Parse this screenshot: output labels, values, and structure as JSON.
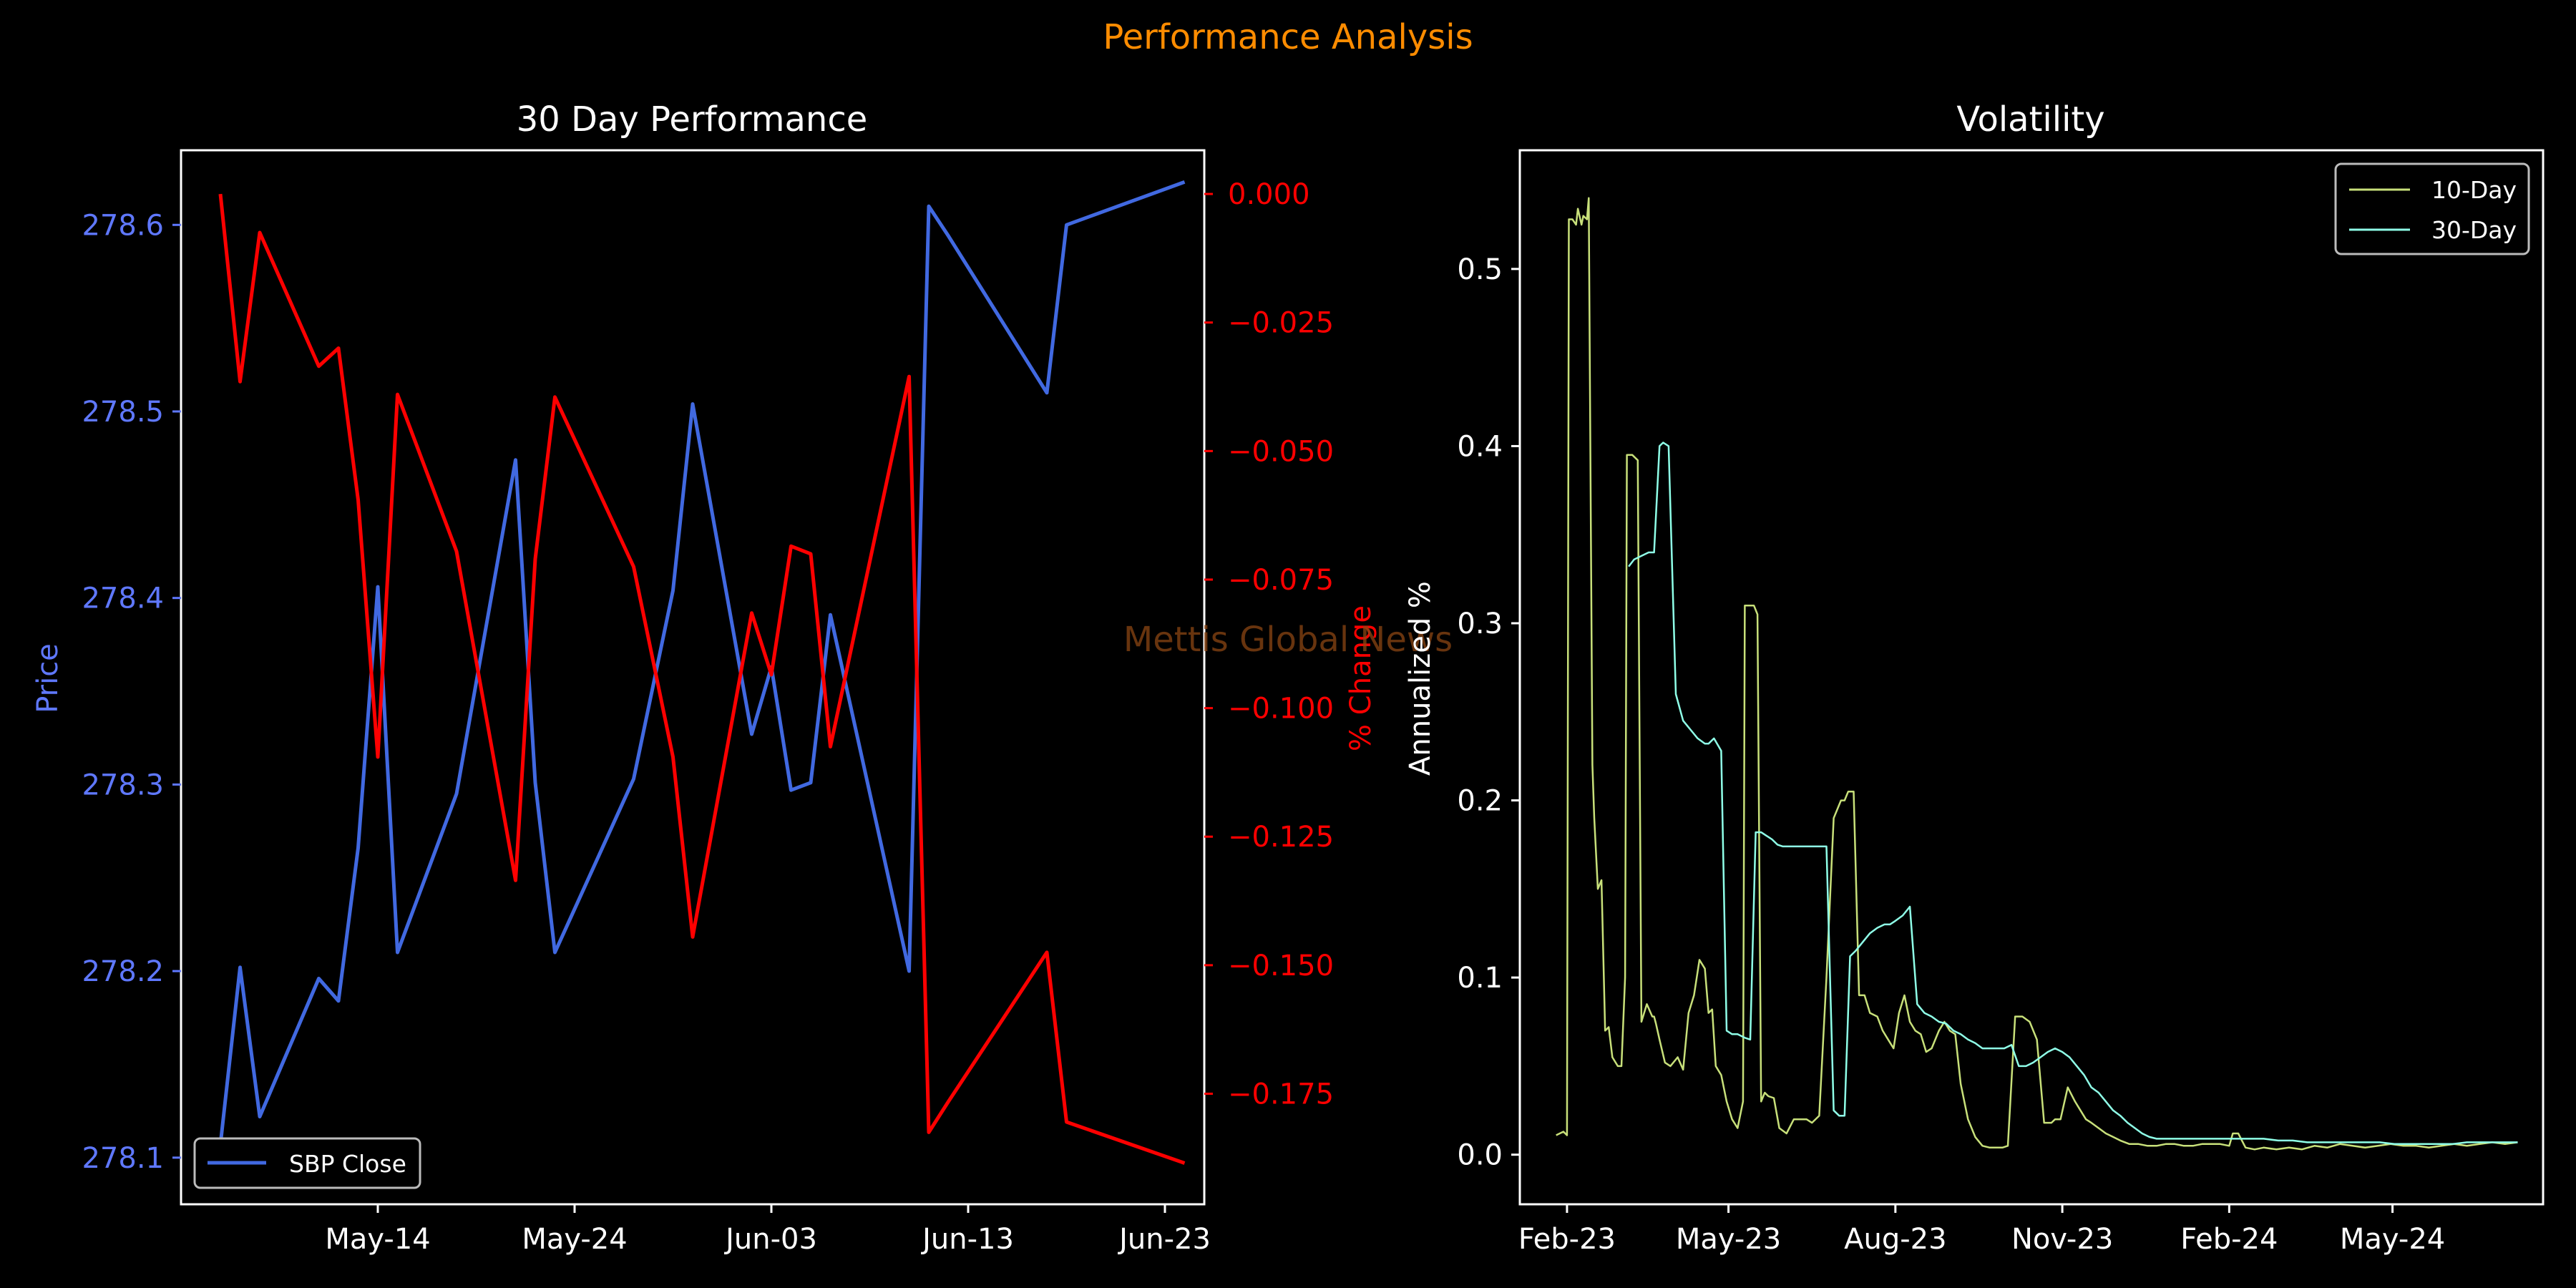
{
  "suptitle": "Performance Analysis",
  "watermark": "Mettis Global News",
  "colors": {
    "background": "#000000",
    "suptitle": "#ff8c00",
    "watermark": "#8b4513",
    "price": "#4169e1",
    "price_ticks": "#5f78ff",
    "pct_change": "#ff0000",
    "vol10": "#c8e07a",
    "vol30": "#8fffe8",
    "axis": "#ffffff"
  },
  "chart_data": [
    {
      "type": "line",
      "title": "30 Day Performance",
      "ylabel": "Price",
      "y2label": "% Change",
      "x_tick_labels": [
        "May-14",
        "May-24",
        "Jun-03",
        "Jun-13",
        "Jun-23"
      ],
      "x_ticks": [
        "2024-05-14",
        "2024-05-24",
        "2024-06-03",
        "2024-06-13",
        "2024-06-23"
      ],
      "xlim": [
        "2024-05-04",
        "2024-06-25"
      ],
      "ylim": [
        278.075,
        278.64
      ],
      "y2lim": [
        -0.1965,
        0.0085
      ],
      "y_ticks": [
        278.1,
        278.2,
        278.3,
        278.4,
        278.5,
        278.6
      ],
      "y2_ticks": [
        0.0,
        -0.025,
        -0.05,
        -0.075,
        -0.1,
        -0.125,
        -0.15,
        -0.175
      ],
      "legend": {
        "position": "lower left",
        "entries": [
          "SBP Close"
        ]
      },
      "x": [
        "2024-05-06",
        "2024-05-07",
        "2024-05-08",
        "2024-05-11",
        "2024-05-12",
        "2024-05-13",
        "2024-05-14",
        "2024-05-15",
        "2024-05-18",
        "2024-05-21",
        "2024-05-22",
        "2024-05-23",
        "2024-05-27",
        "2024-05-29",
        "2024-05-30",
        "2024-06-02",
        "2024-06-03",
        "2024-06-04",
        "2024-06-05",
        "2024-06-06",
        "2024-06-10",
        "2024-06-11",
        "2024-06-12",
        "2024-06-17",
        "2024-06-18",
        "2024-06-24"
      ],
      "series": [
        {
          "name": "SBP Close",
          "axis": "left",
          "values": [
            278.107,
            278.202,
            278.122,
            278.196,
            278.184,
            278.266,
            278.406,
            278.21,
            278.295,
            278.474,
            278.301,
            278.21,
            278.303,
            278.404,
            278.504,
            278.327,
            278.363,
            278.297,
            278.301,
            278.391,
            278.2,
            278.61,
            278.594,
            278.51,
            278.6,
            278.623
          ]
        },
        {
          "name": "% Change",
          "axis": "right",
          "values": [
            0.0,
            -0.0365,
            -0.0075,
            -0.0335,
            -0.03,
            -0.0595,
            -0.1095,
            -0.039,
            -0.0695,
            -0.1335,
            -0.071,
            -0.0395,
            -0.0725,
            -0.1095,
            -0.1445,
            -0.0815,
            -0.0935,
            -0.0685,
            -0.07,
            -0.1075,
            -0.0355,
            -0.1825,
            -0.1765,
            -0.1475,
            -0.1805,
            -0.1885
          ]
        }
      ]
    },
    {
      "type": "line",
      "title": "Volatility",
      "ylabel": "Annualized %",
      "x_tick_labels": [
        "Feb-23",
        "May-23",
        "Aug-23",
        "Nov-23",
        "Feb-24",
        "May-24"
      ],
      "x_ticks": [
        "2023-02-01",
        "2023-05-01",
        "2023-08-01",
        "2023-11-01",
        "2024-02-01",
        "2024-05-01"
      ],
      "xlim": [
        "2023-01-06",
        "2024-07-23"
      ],
      "ylim": [
        -0.028,
        0.567
      ],
      "y_ticks": [
        0.0,
        0.1,
        0.2,
        0.3,
        0.4,
        0.5
      ],
      "legend": {
        "position": "upper right",
        "entries": [
          "10-Day",
          "30-Day"
        ]
      },
      "series": [
        {
          "name": "10-Day",
          "x": [
            "2023-01-26",
            "2023-01-28",
            "2023-01-30",
            "2023-02-01",
            "2023-02-02",
            "2023-02-04",
            "2023-02-06",
            "2023-02-07",
            "2023-02-09",
            "2023-02-10",
            "2023-02-12",
            "2023-02-13",
            "2023-02-15",
            "2023-02-16",
            "2023-02-18",
            "2023-02-20",
            "2023-02-22",
            "2023-02-24",
            "2023-02-26",
            "2023-03-01",
            "2023-03-03",
            "2023-03-05",
            "2023-03-06",
            "2023-03-09",
            "2023-03-12",
            "2023-03-14",
            "2023-03-17",
            "2023-03-20",
            "2023-03-21",
            "2023-03-22",
            "2023-03-24",
            "2023-03-27",
            "2023-03-30",
            "2023-04-03",
            "2023-04-06",
            "2023-04-09",
            "2023-04-12",
            "2023-04-15",
            "2023-04-18",
            "2023-04-20",
            "2023-04-22",
            "2023-04-24",
            "2023-04-27",
            "2023-04-30",
            "2023-05-03",
            "2023-05-06",
            "2023-05-09",
            "2023-05-10",
            "2023-05-11",
            "2023-05-13",
            "2023-05-15",
            "2023-05-17",
            "2023-05-19",
            "2023-05-21",
            "2023-05-23",
            "2023-05-26",
            "2023-05-29",
            "2023-06-02",
            "2023-06-06",
            "2023-06-10",
            "2023-06-13",
            "2023-06-16",
            "2023-06-20",
            "2023-06-24",
            "2023-06-28",
            "2023-07-02",
            "2023-07-04",
            "2023-07-06",
            "2023-07-09",
            "2023-07-12",
            "2023-07-15",
            "2023-07-18",
            "2023-07-22",
            "2023-07-25",
            "2023-07-28",
            "2023-07-31",
            "2023-08-03",
            "2023-08-06",
            "2023-08-09",
            "2023-08-12",
            "2023-08-15",
            "2023-08-18",
            "2023-08-21",
            "2023-08-25",
            "2023-08-28",
            "2023-08-31",
            "2023-09-03",
            "2023-09-06",
            "2023-09-10",
            "2023-09-14",
            "2023-09-18",
            "2023-09-22",
            "2023-09-26",
            "2023-09-29",
            "2023-10-02",
            "2023-10-06",
            "2023-10-10",
            "2023-10-14",
            "2023-10-18",
            "2023-10-22",
            "2023-10-26",
            "2023-10-28",
            "2023-10-31",
            "2023-11-04",
            "2023-11-08",
            "2023-11-11",
            "2023-11-14",
            "2023-11-17",
            "2023-11-21",
            "2023-11-25",
            "2023-11-29",
            "2023-12-03",
            "2023-12-08",
            "2023-12-13",
            "2023-12-18",
            "2023-12-23",
            "2023-12-28",
            "2024-01-02",
            "2024-01-07",
            "2024-01-12",
            "2024-01-17",
            "2024-01-22",
            "2024-01-27",
            "2024-02-01",
            "2024-02-03",
            "2024-02-06",
            "2024-02-10",
            "2024-02-15",
            "2024-02-20",
            "2024-02-27",
            "2024-03-05",
            "2024-03-12",
            "2024-03-19",
            "2024-03-26",
            "2024-04-02",
            "2024-04-09",
            "2024-04-16",
            "2024-04-23",
            "2024-04-30",
            "2024-05-07",
            "2024-05-14",
            "2024-05-21",
            "2024-05-28",
            "2024-06-04",
            "2024-06-11",
            "2024-06-18",
            "2024-06-25",
            "2024-07-02",
            "2024-07-09"
          ],
          "values": [
            0.011,
            0.012,
            0.013,
            0.011,
            0.528,
            0.528,
            0.525,
            0.534,
            0.525,
            0.53,
            0.528,
            0.54,
            0.22,
            0.19,
            0.15,
            0.155,
            0.07,
            0.072,
            0.055,
            0.05,
            0.05,
            0.1,
            0.395,
            0.395,
            0.392,
            0.075,
            0.085,
            0.078,
            0.078,
            0.074,
            0.065,
            0.052,
            0.05,
            0.055,
            0.048,
            0.08,
            0.09,
            0.11,
            0.105,
            0.08,
            0.082,
            0.05,
            0.045,
            0.03,
            0.02,
            0.015,
            0.03,
            0.31,
            0.31,
            0.31,
            0.31,
            0.305,
            0.03,
            0.035,
            0.033,
            0.032,
            0.015,
            0.012,
            0.02,
            0.02,
            0.02,
            0.018,
            0.022,
            0.1,
            0.19,
            0.2,
            0.2,
            0.205,
            0.205,
            0.09,
            0.09,
            0.08,
            0.078,
            0.07,
            0.065,
            0.06,
            0.08,
            0.09,
            0.075,
            0.07,
            0.068,
            0.058,
            0.06,
            0.07,
            0.075,
            0.07,
            0.068,
            0.04,
            0.02,
            0.01,
            0.005,
            0.004,
            0.004,
            0.004,
            0.005,
            0.078,
            0.078,
            0.075,
            0.065,
            0.018,
            0.018,
            0.02,
            0.02,
            0.038,
            0.03,
            0.025,
            0.02,
            0.018,
            0.015,
            0.012,
            0.01,
            0.008,
            0.006,
            0.006,
            0.005,
            0.005,
            0.006,
            0.006,
            0.005,
            0.005,
            0.006,
            0.006,
            0.006,
            0.005,
            0.012,
            0.012,
            0.004,
            0.003,
            0.004,
            0.003,
            0.004,
            0.003,
            0.005,
            0.004,
            0.006,
            0.005,
            0.004,
            0.005,
            0.006,
            0.005,
            0.005,
            0.004,
            0.005,
            0.006,
            0.005,
            0.006,
            0.007,
            0.006,
            0.007
          ]
        },
        {
          "name": "30-Day",
          "x": [
            "2023-03-07",
            "2023-03-10",
            "2023-03-14",
            "2023-03-18",
            "2023-03-21",
            "2023-03-24",
            "2023-03-26",
            "2023-03-29",
            "2023-04-02",
            "2023-04-06",
            "2023-04-10",
            "2023-04-14",
            "2023-04-18",
            "2023-04-20",
            "2023-04-23",
            "2023-04-27",
            "2023-04-30",
            "2023-05-03",
            "2023-05-06",
            "2023-05-10",
            "2023-05-13",
            "2023-05-16",
            "2023-05-19",
            "2023-05-22",
            "2023-05-25",
            "2023-05-28",
            "2023-05-31",
            "2023-06-04",
            "2023-06-08",
            "2023-06-12",
            "2023-06-16",
            "2023-06-20",
            "2023-06-24",
            "2023-06-28",
            "2023-07-01",
            "2023-07-04",
            "2023-07-07",
            "2023-07-10",
            "2023-07-14",
            "2023-07-18",
            "2023-07-22",
            "2023-07-26",
            "2023-07-29",
            "2023-08-01",
            "2023-08-05",
            "2023-08-09",
            "2023-08-13",
            "2023-08-17",
            "2023-08-21",
            "2023-08-25",
            "2023-08-29",
            "2023-09-02",
            "2023-09-06",
            "2023-09-10",
            "2023-09-14",
            "2023-09-18",
            "2023-09-22",
            "2023-09-26",
            "2023-09-30",
            "2023-10-04",
            "2023-10-08",
            "2023-10-12",
            "2023-10-16",
            "2023-10-20",
            "2023-10-24",
            "2023-10-28",
            "2023-11-01",
            "2023-11-05",
            "2023-11-09",
            "2023-11-13",
            "2023-11-17",
            "2023-11-21",
            "2023-11-25",
            "2023-11-29",
            "2023-12-03",
            "2023-12-07",
            "2023-12-11",
            "2023-12-15",
            "2023-12-19",
            "2023-12-23",
            "2023-12-27",
            "2024-01-01",
            "2024-01-06",
            "2024-01-11",
            "2024-01-16",
            "2024-01-21",
            "2024-01-26",
            "2024-01-31",
            "2024-02-05",
            "2024-02-12",
            "2024-02-20",
            "2024-02-28",
            "2024-03-07",
            "2024-03-15",
            "2024-03-23",
            "2024-03-31",
            "2024-04-08",
            "2024-04-16",
            "2024-04-24",
            "2024-05-02",
            "2024-05-10",
            "2024-05-18",
            "2024-05-26",
            "2024-06-03",
            "2024-06-11",
            "2024-06-19",
            "2024-06-27",
            "2024-07-05",
            "2024-07-09"
          ],
          "values": [
            0.332,
            0.336,
            0.338,
            0.34,
            0.34,
            0.4,
            0.402,
            0.4,
            0.26,
            0.245,
            0.24,
            0.235,
            0.232,
            0.232,
            0.235,
            0.228,
            0.07,
            0.068,
            0.068,
            0.066,
            0.065,
            0.182,
            0.182,
            0.18,
            0.178,
            0.175,
            0.174,
            0.174,
            0.174,
            0.174,
            0.174,
            0.174,
            0.174,
            0.025,
            0.022,
            0.022,
            0.112,
            0.115,
            0.12,
            0.125,
            0.128,
            0.13,
            0.13,
            0.132,
            0.135,
            0.14,
            0.085,
            0.08,
            0.078,
            0.075,
            0.074,
            0.07,
            0.068,
            0.065,
            0.063,
            0.06,
            0.06,
            0.06,
            0.06,
            0.062,
            0.05,
            0.05,
            0.052,
            0.055,
            0.058,
            0.06,
            0.058,
            0.055,
            0.05,
            0.045,
            0.038,
            0.035,
            0.03,
            0.025,
            0.022,
            0.018,
            0.015,
            0.012,
            0.01,
            0.009,
            0.009,
            0.009,
            0.009,
            0.009,
            0.009,
            0.009,
            0.009,
            0.009,
            0.009,
            0.009,
            0.009,
            0.008,
            0.008,
            0.007,
            0.007,
            0.007,
            0.007,
            0.007,
            0.007,
            0.006,
            0.006,
            0.006,
            0.006,
            0.006,
            0.007,
            0.007,
            0.007,
            0.007,
            0.007
          ]
        }
      ]
    }
  ]
}
